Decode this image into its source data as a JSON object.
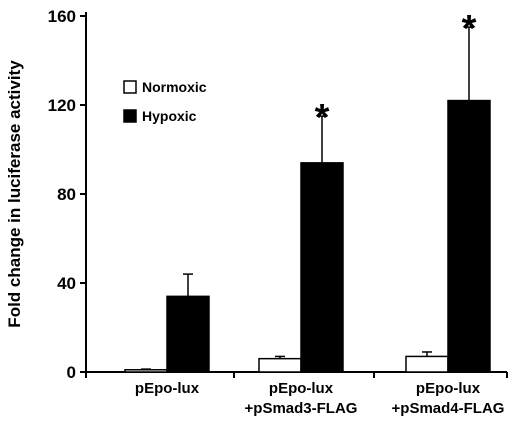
{
  "chart_data": {
    "type": "bar",
    "title": "",
    "xlabel": "",
    "ylabel": "Fold change in luciferase activity",
    "ylim": [
      0,
      160
    ],
    "yticks": [
      0,
      40,
      80,
      120,
      160
    ],
    "grid": false,
    "legend_position": "top-left",
    "categories": [
      [
        "pEpo-lux"
      ],
      [
        "pEpo-lux",
        "+pSmad3-FLAG"
      ],
      [
        "pEpo-lux",
        "+pSmad4-FLAG"
      ]
    ],
    "series": [
      {
        "name": "Normoxic",
        "fill": "#ffffff",
        "values": [
          1,
          6,
          7
        ],
        "errors": [
          0.3,
          1,
          2
        ]
      },
      {
        "name": "Hypoxic",
        "fill": "#000000",
        "values": [
          34,
          94,
          122
        ],
        "errors": [
          10,
          21,
          33
        ]
      }
    ],
    "annotations": [
      {
        "text": "*",
        "category_index": 1,
        "series_index": 1
      },
      {
        "text": "*",
        "category_index": 2,
        "series_index": 1
      }
    ]
  }
}
